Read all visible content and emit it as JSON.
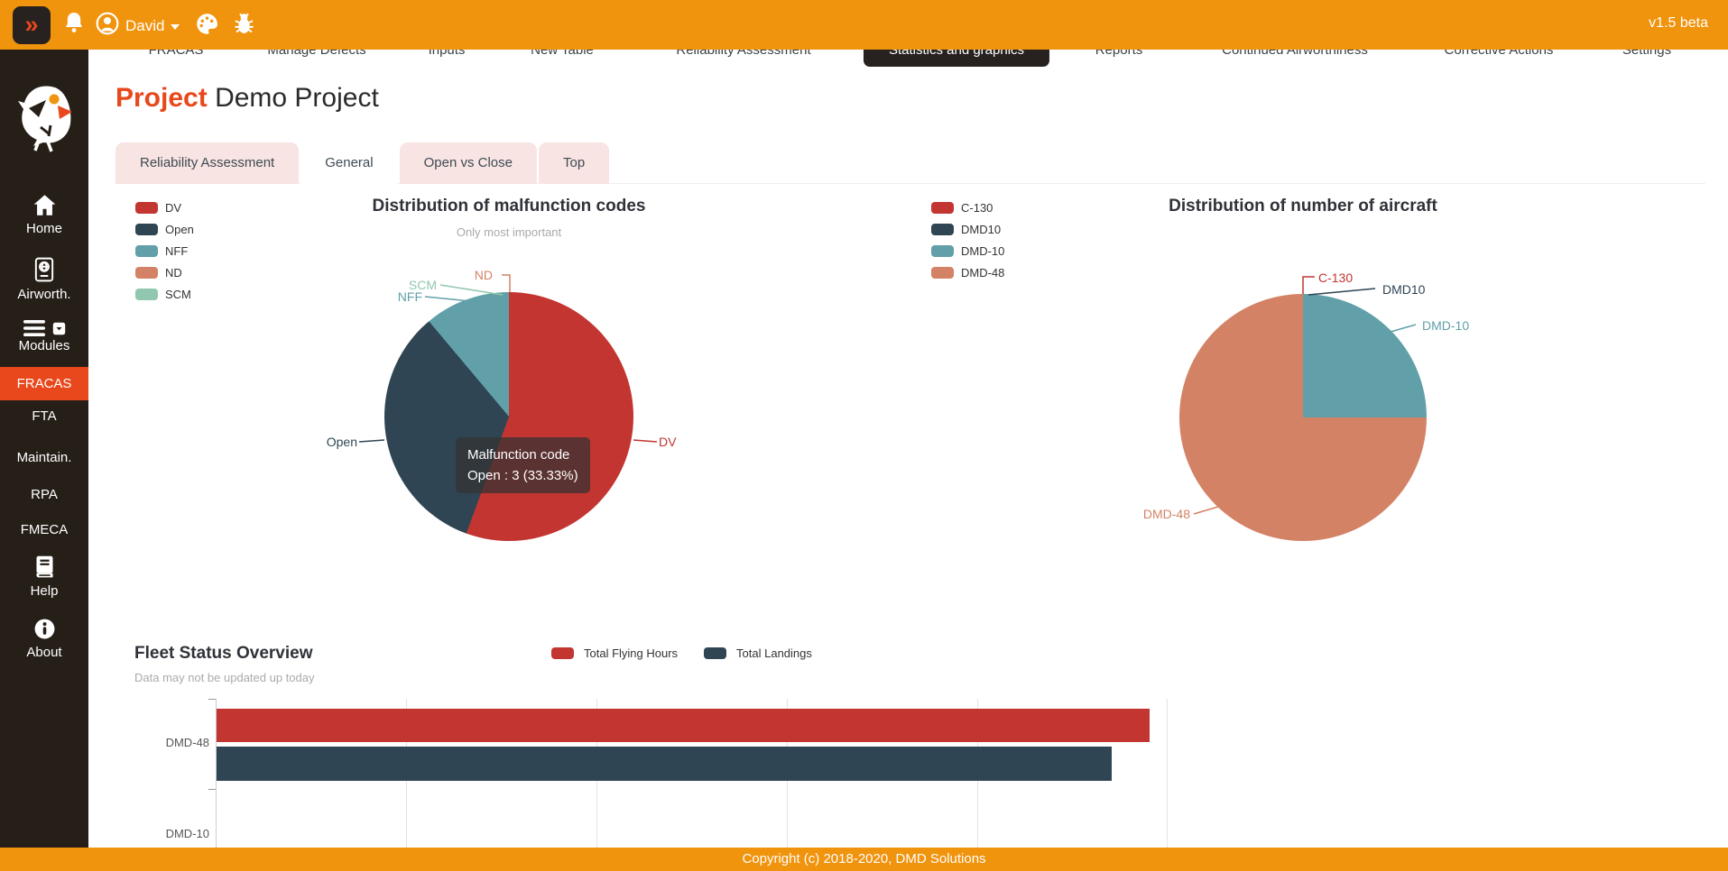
{
  "header": {
    "menu_button": "»",
    "user": "David",
    "version": "v1.5 beta"
  },
  "nav": {
    "items": [
      {
        "label": "FRACAS",
        "active": false
      },
      {
        "label": "Manage Defects",
        "active": false
      },
      {
        "label": "Inputs",
        "active": false
      },
      {
        "label": "New Table",
        "active": false
      },
      {
        "label": "Reliability Assessment",
        "active": false
      },
      {
        "label": "Statistics and graphics",
        "active": true
      },
      {
        "label": "Reports",
        "active": false
      },
      {
        "label": "Continued Airworthiness",
        "active": false
      },
      {
        "label": "Corrective Actions",
        "active": false
      },
      {
        "label": "Settings",
        "active": false
      }
    ]
  },
  "sidebar": {
    "items": [
      {
        "label": "Home"
      },
      {
        "label": "Airworth."
      },
      {
        "label": "Modules"
      },
      {
        "label": "FRACAS",
        "active": true
      },
      {
        "label": "FTA"
      },
      {
        "label": "Maintain."
      },
      {
        "label": "RPA"
      },
      {
        "label": "FMECA"
      },
      {
        "label": "Help"
      },
      {
        "label": "About"
      }
    ]
  },
  "page": {
    "title_label": "Project",
    "title_value": "Demo Project"
  },
  "tabs": [
    {
      "label": "Reliability Assessment",
      "active": false
    },
    {
      "label": "General",
      "active": true
    },
    {
      "label": "Open vs Close",
      "active": false
    },
    {
      "label": "Top",
      "active": false
    }
  ],
  "tooltip": {
    "title": "Malfunction code",
    "value": "Open : 3 (33.33%)"
  },
  "chart_data": [
    {
      "type": "pie",
      "title": "Distribution of malfunction codes",
      "subtitle": "Only most important",
      "labels": [
        "DV",
        "Open",
        "NFF",
        "ND",
        "SCM"
      ],
      "values": [
        5,
        3,
        1,
        0,
        0
      ],
      "percents": [
        55.56,
        33.33,
        11.11,
        0,
        0
      ],
      "colors": [
        "#C23531",
        "#2F4554",
        "#61A0A8",
        "#D48265",
        "#91C7AE"
      ],
      "legend_position": "left",
      "start_angle": "top",
      "direction": "clockwise"
    },
    {
      "type": "pie",
      "title": "Distribution of number of aircraft",
      "subtitle": "",
      "labels": [
        "C-130",
        "DMD10",
        "DMD-10",
        "DMD-48"
      ],
      "values": [
        0,
        0,
        1,
        3
      ],
      "percents": [
        0,
        0,
        25,
        75
      ],
      "colors": [
        "#C23531",
        "#2F4554",
        "#61A0A8",
        "#D48265"
      ],
      "legend_position": "left",
      "start_angle": "top",
      "direction": "clockwise"
    },
    {
      "type": "bar",
      "orientation": "horizontal",
      "title": "Fleet Status Overview",
      "subtitle": "Data may not be updated up today",
      "categories": [
        "DMD-48",
        "DMD-10"
      ],
      "series": [
        {
          "name": "Total Flying Hours",
          "color": "#C23531",
          "values_pct": [
            98,
            0
          ]
        },
        {
          "name": "Total Landings",
          "color": "#2F4554",
          "values_pct": [
            94,
            0
          ]
        }
      ],
      "grid": true,
      "x_axis_tick_labels_visible": false
    }
  ],
  "footer": {
    "copyright": "Copyright (c) 2018-2020, DMD Solutions"
  },
  "colors": {
    "accent": "#E8481C",
    "header_orange": "#F0930D",
    "sidebar_bg": "#261F18",
    "dark_button": "#272220",
    "tab_pink": "#F8E4E2",
    "muted_text": "#AAAAAA"
  }
}
